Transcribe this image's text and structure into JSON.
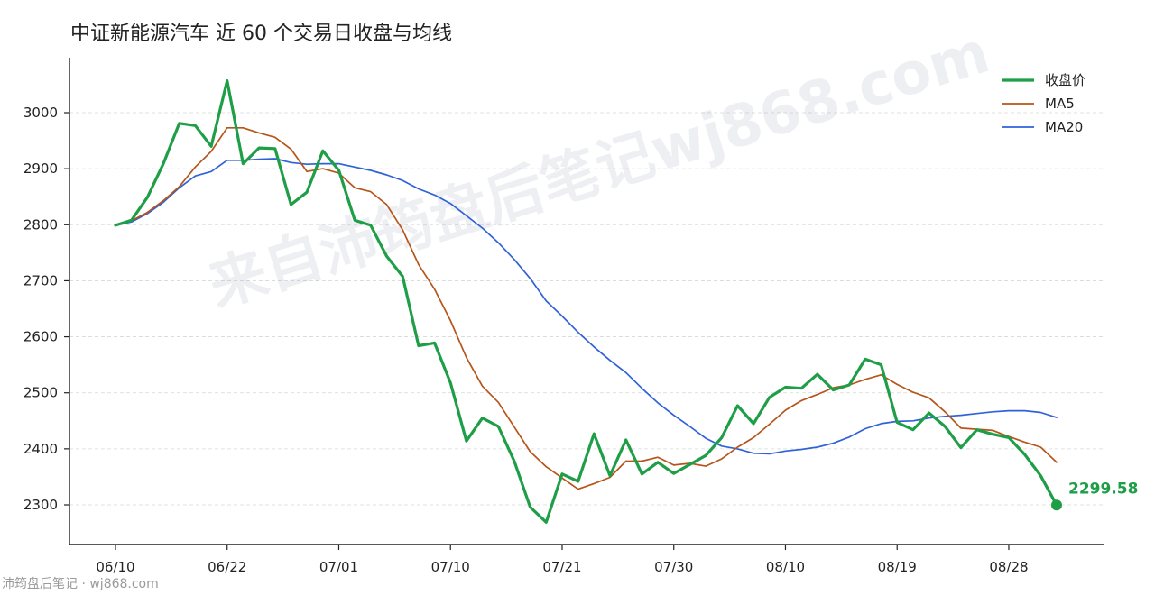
{
  "chart_data": {
    "type": "line",
    "title": "中证新能源汽车 近 60 个交易日收盘与均线",
    "xlabel": "",
    "ylabel": "",
    "ylim": [
      2220,
      3090
    ],
    "yticks": [
      2300,
      2400,
      2500,
      2600,
      2700,
      2800,
      2900,
      3000
    ],
    "xtick_labels": [
      "06/10",
      "06/22",
      "07/01",
      "07/10",
      "07/21",
      "07/30",
      "08/10",
      "08/19",
      "08/28"
    ],
    "xtick_indices": [
      0,
      7,
      14,
      21,
      28,
      35,
      42,
      49,
      56
    ],
    "grid": true,
    "legend_position": "top-right",
    "series": [
      {
        "name": "收盘价",
        "color": "#1f9e48",
        "values": [
          2799,
          2808,
          2849,
          2909,
          2981,
          2977,
          2940,
          3057,
          2909,
          2937,
          2936,
          2836,
          2858,
          2932,
          2897,
          2808,
          2799,
          2744,
          2708,
          2584,
          2589,
          2518,
          2414,
          2455,
          2440,
          2378,
          2296,
          2269,
          2355,
          2342,
          2427,
          2352,
          2416,
          2355,
          2376,
          2356,
          2372,
          2388,
          2420,
          2477,
          2445,
          2492,
          2510,
          2508,
          2533,
          2505,
          2514,
          2560,
          2550,
          2447,
          2434,
          2464,
          2440,
          2402,
          2434,
          2426,
          2420,
          2390,
          2352,
          2299.58
        ]
      },
      {
        "name": "MA5",
        "color": "#b5551a",
        "values": [
          2799,
          2807,
          2822,
          2843,
          2868,
          2903,
          2931,
          2973,
          2973,
          2964,
          2956,
          2935,
          2895,
          2900,
          2892,
          2866,
          2859,
          2836,
          2791,
          2729,
          2685,
          2629,
          2563,
          2512,
          2483,
          2439,
          2395,
          2368,
          2348,
          2328,
          2338,
          2349,
          2378,
          2378,
          2385,
          2371,
          2374,
          2369,
          2382,
          2403,
          2420,
          2444,
          2469,
          2486,
          2497,
          2509,
          2514,
          2524,
          2532,
          2515,
          2501,
          2491,
          2466,
          2437,
          2435,
          2433,
          2422,
          2412,
          2403,
          2376
        ]
      },
      {
        "name": "MA20",
        "color": "#2f62d8",
        "values": [
          2799,
          2805,
          2820,
          2840,
          2866,
          2887,
          2895,
          2915,
          2915,
          2917,
          2918,
          2911,
          2908,
          2909,
          2909,
          2903,
          2897,
          2889,
          2879,
          2864,
          2853,
          2838,
          2816,
          2794,
          2768,
          2738,
          2704,
          2664,
          2637,
          2608,
          2582,
          2558,
          2536,
          2508,
          2482,
          2460,
          2440,
          2419,
          2405,
          2400,
          2392,
          2391,
          2396,
          2399,
          2403,
          2410,
          2421,
          2436,
          2445,
          2449,
          2450,
          2455,
          2458,
          2460,
          2463,
          2466,
          2468,
          2468,
          2465,
          2456
        ]
      }
    ],
    "last_value_label": "2299.58"
  },
  "watermark": {
    "text": "来自沛筠盘后笔记wj868.com"
  },
  "footer": {
    "text": "沛筠盘后笔记 · wj868.com"
  }
}
